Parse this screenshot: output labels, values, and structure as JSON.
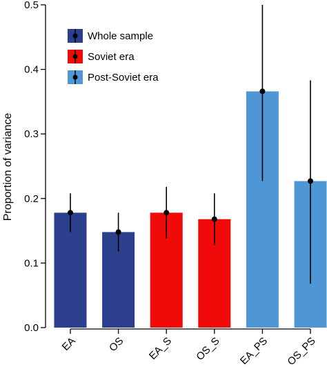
{
  "chart_data": {
    "type": "bar",
    "ylabel": "Proportion of variance",
    "xlabel": "",
    "ylim": [
      0,
      0.5
    ],
    "yticks": [
      "0.0",
      "0.1",
      "0.2",
      "0.3",
      "0.4",
      "0.5"
    ],
    "categories": [
      "EA",
      "OS",
      "EA_S",
      "OS_S",
      "EA_PS",
      "OS_PS"
    ],
    "values": [
      0.178,
      0.148,
      0.178,
      0.168,
      0.366,
      0.227
    ],
    "error_low": [
      0.148,
      0.118,
      0.138,
      0.128,
      0.227,
      0.068
    ],
    "error_high": [
      0.208,
      0.178,
      0.218,
      0.208,
      0.5,
      0.383
    ],
    "bar_groups": [
      "Whole sample",
      "Whole sample",
      "Soviet era",
      "Soviet era",
      "Post-Soviet era",
      "Post-Soviet era"
    ],
    "legend": {
      "placement": "top-left",
      "entries": [
        {
          "label": "Whole sample",
          "color": "#2b3f8c"
        },
        {
          "label": "Soviet era",
          "color": "#f00a0a"
        },
        {
          "label": "Post-Soviet era",
          "color": "#4f97d4"
        }
      ]
    },
    "grid": false
  }
}
